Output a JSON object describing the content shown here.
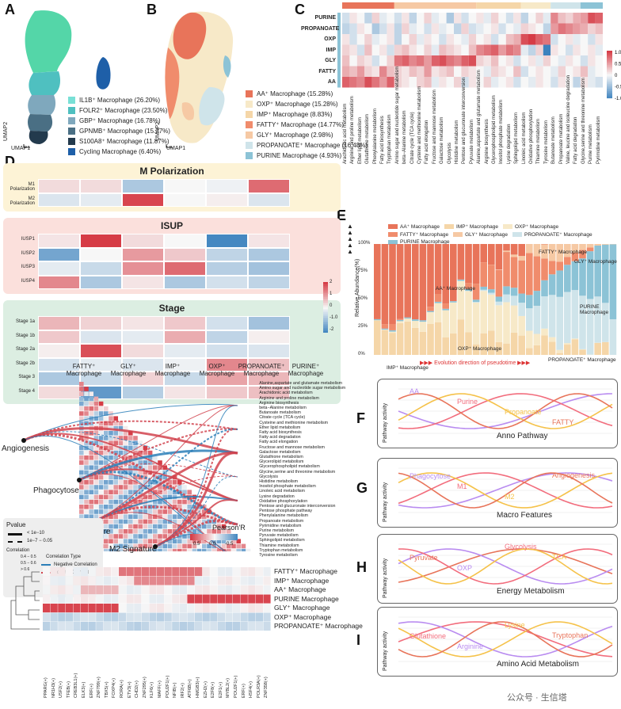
{
  "panels": {
    "A": "A",
    "B": "B",
    "C": "C",
    "D": "D",
    "E": "E",
    "F": "F",
    "G": "G",
    "H": "H",
    "I": "I",
    "J": "J",
    "K": "K"
  },
  "umap_axes": {
    "x": "UMAP1",
    "y": "UMAP2"
  },
  "panelA_legend": [
    {
      "label": "IL1B⁺ Macrophage (26.20%)",
      "color": "#79e0d6"
    },
    {
      "label": "FOLR2⁺ Macrophage (23.50%)",
      "color": "#4fc0c0"
    },
    {
      "label": "GBP⁺ Macrophage (16.78%)",
      "color": "#7fa8bd"
    },
    {
      "label": "GPNMB⁺ Macrophage (15.27%)",
      "color": "#4a6f84"
    },
    {
      "label": "S100A8⁺ Macrophage (11.87%)",
      "color": "#233a4d"
    },
    {
      "label": "Cycling Macrophage (6.40%)",
      "color": "#1e5fa8"
    }
  ],
  "panelB_legend": [
    {
      "label": "AA⁺ Macrophage (15.28%)",
      "color": "#e8745a"
    },
    {
      "label": "OXP⁺ Macrophage (15.28%)",
      "color": "#f7e9c8"
    },
    {
      "label": "IMP⁺ Macrophage (8.83%)",
      "color": "#f5d6a8"
    },
    {
      "label": "FATTY⁺ Macrophage (14.77%)",
      "color": "#f08c6c"
    },
    {
      "label": "GLY⁺ Macrophage (2.98%)",
      "color": "#f6c9a4"
    },
    {
      "label": "PROPANOATE⁺ Macrophage (16.48%)",
      "color": "#cfe4ea"
    },
    {
      "label": "PURINE Macrophage (4.93%)",
      "color": "#8cc3d6"
    }
  ],
  "panelC": {
    "rows": [
      "PURINE",
      "PROPANOATE",
      "OXP",
      "IMP",
      "GLY",
      "FATTY",
      "AA"
    ],
    "cols": [
      "Arachidonic acid metabolism",
      "Arginine and proline metabolism",
      "Ether lipid metabolism",
      "Glutathione metabolism",
      "Phenylalanine metabolism",
      "Fatty acid biosynthesis",
      "Tryptophan metabolism",
      "Amino sugar and nucleotide sugar metabolism",
      "beta−Alanine metabolism",
      "Citrate cycle (TCA cycle)",
      "Cysteine and methionine metabolism",
      "Fatty acid elongation",
      "Fructose and mannose metabolism",
      "Galactose metabolism",
      "Glycolysis",
      "Histidine metabolism",
      "Pentose and glucuronate interconversion",
      "Pyruvate metabolism",
      "Alanine,aspartate and glutamate metabolism",
      "Arginine biosynthesis",
      "Glycerophospholipid metabolism",
      "Inositol phosphate metabolism",
      "Lysine degradation",
      "Sphingolipid metabolism",
      "Linoleic acid metabolism",
      "Oxidative phosphorylation",
      "Thiamine metabolism",
      "Tyrosine metabolism",
      "Butanoate metabolism",
      "Propanoate metabolism",
      "Valine, leucine and isoleucine degradation",
      "Fatty acid degradation",
      "Glycine,serine and threonine metabolism",
      "Purine metabolism",
      "Pyrimidine metabolism"
    ],
    "col_groups": [
      {
        "span": 7,
        "color": "#e8745a"
      },
      {
        "span": 11,
        "color": "#f6c9a4"
      },
      {
        "span": 6,
        "color": "#f5d6a8"
      },
      {
        "span": 4,
        "color": "#f7e9c8"
      },
      {
        "span": 4,
        "color": "#cfe4ea"
      },
      {
        "span": 3,
        "color": "#8cc3d6"
      }
    ],
    "values": [
      [
        -0.2,
        0.1,
        0.0,
        -0.3,
        0.2,
        -0.1,
        0.0,
        -0.2,
        0.1,
        -0.3,
        0.0,
        0.2,
        -0.1,
        0.0,
        -0.4,
        0.1,
        -0.2,
        0.0,
        0.1,
        -0.1,
        0.2,
        0.0,
        -0.2,
        0.1,
        -0.3,
        0.0,
        0.2,
        -0.1,
        0.6,
        0.3,
        0.2,
        0.4,
        0.5,
        0.9,
        0.8
      ],
      [
        -0.3,
        -0.2,
        0.1,
        0.0,
        -0.4,
        -0.2,
        0.1,
        -0.3,
        0.2,
        -0.1,
        0.0,
        -0.2,
        0.1,
        -0.1,
        0.0,
        -0.3,
        0.2,
        -0.2,
        -0.1,
        0.0,
        0.1,
        -0.2,
        0.0,
        -0.1,
        0.2,
        0.1,
        0.0,
        -0.3,
        0.5,
        0.7,
        0.6,
        0.5,
        0.4,
        0.2,
        0.3
      ],
      [
        0.1,
        -0.2,
        0.0,
        0.2,
        -0.1,
        0.0,
        0.1,
        -0.3,
        0.0,
        0.2,
        -0.1,
        0.1,
        0.0,
        -0.2,
        0.1,
        0.0,
        -0.1,
        0.2,
        0.0,
        0.1,
        -0.2,
        0.0,
        0.3,
        0.4,
        0.9,
        1.0,
        0.8,
        0.7,
        -0.2,
        0.0,
        0.1,
        -0.1,
        0.0,
        -0.2,
        0.1
      ],
      [
        0.2,
        0.1,
        -0.2,
        0.3,
        0.0,
        0.1,
        -0.2,
        0.2,
        0.3,
        0.1,
        0.0,
        0.2,
        -0.1,
        0.3,
        0.2,
        0.1,
        0.0,
        0.3,
        0.6,
        0.7,
        0.8,
        0.5,
        0.7,
        0.6,
        -0.1,
        -0.3,
        0.2,
        -1.0,
        0.1,
        0.0,
        -0.2,
        0.1,
        0.0,
        0.1,
        -0.1
      ],
      [
        0.3,
        0.0,
        0.2,
        0.1,
        -0.2,
        0.0,
        0.2,
        0.7,
        0.8,
        0.6,
        0.7,
        0.5,
        0.8,
        0.9,
        0.7,
        0.6,
        0.8,
        0.9,
        0.2,
        0.1,
        0.3,
        0.0,
        0.1,
        -0.2,
        0.0,
        0.1,
        -0.1,
        0.2,
        0.0,
        -0.1,
        0.1,
        0.0,
        -0.2,
        0.1,
        0.0
      ],
      [
        0.4,
        0.3,
        0.5,
        0.2,
        0.1,
        0.6,
        0.3,
        0.2,
        0.1,
        0.3,
        0.2,
        0.5,
        0.1,
        0.2,
        0.3,
        0.0,
        0.2,
        0.1,
        0.0,
        -0.1,
        0.2,
        0.1,
        0.0,
        0.3,
        -0.2,
        0.0,
        0.1,
        0.0,
        -0.1,
        0.2,
        0.0,
        0.1,
        0.3,
        -0.1,
        0.0
      ],
      [
        0.8,
        0.7,
        0.6,
        0.9,
        0.7,
        0.5,
        0.8,
        0.2,
        0.1,
        0.0,
        0.2,
        0.3,
        -0.1,
        0.1,
        0.0,
        0.2,
        -0.2,
        0.1,
        0.0,
        0.2,
        -0.1,
        0.0,
        0.1,
        -0.2,
        0.0,
        -0.1,
        0.1,
        0.0,
        -0.2,
        0.1,
        0.0,
        -0.3,
        0.1,
        -0.1,
        -0.2
      ]
    ],
    "legend": {
      "ticks": [
        "1.0",
        "0.5",
        "0",
        "-0.5",
        "-1.0"
      ]
    }
  },
  "panelD": {
    "cols": [
      "FATTY⁺\nMacrophage",
      "GLY⁺\nMacrophage",
      "IMP⁺\nMacrophage",
      "OXP⁺\nMacrophage",
      "PROPANOATE⁺\nMacrophage",
      "PURINE⁺\nMacrophage"
    ],
    "sections": [
      {
        "title": "M Polarization",
        "bg": "#fdf3d6",
        "rows": [
          {
            "label": "M1\nPolarization",
            "values": [
              0.3,
              0.3,
              -0.8,
              0.0,
              -0.1,
              1.5
            ]
          },
          {
            "label": "M2\nPolarization",
            "values": [
              -0.3,
              -0.2,
              1.9,
              0.0,
              0.1,
              -0.3
            ]
          }
        ]
      },
      {
        "title": "ISUP",
        "bg": "#fbe0dc",
        "rows": [
          {
            "label": "IUSP1",
            "values": [
              0.2,
              2.0,
              0.3,
              0.0,
              -1.9,
              0.2
            ]
          },
          {
            "label": "IUSP2",
            "values": [
              -1.4,
              0.0,
              1.0,
              0.5,
              -0.6,
              -0.8
            ]
          },
          {
            "label": "IUSP3",
            "values": [
              -0.2,
              -0.5,
              1.1,
              1.5,
              -0.7,
              -0.9
            ]
          },
          {
            "label": "IUSP4",
            "values": [
              1.2,
              -0.8,
              0.2,
              -0.8,
              -0.4,
              -0.6
            ]
          }
        ]
      },
      {
        "title": "Stage",
        "bg": "#dceee2",
        "rows": [
          {
            "label": "Stage 1a",
            "values": [
              0.7,
              0.4,
              0.2,
              0.5,
              -0.4,
              -0.9
            ]
          },
          {
            "label": "Stage 1b",
            "values": [
              0.5,
              -0.3,
              -0.2,
              0.8,
              -0.6,
              0.1
            ]
          },
          {
            "label": "Stage 2a",
            "values": [
              0.1,
              1.8,
              0.3,
              -0.2,
              -0.4,
              -0.3
            ]
          },
          {
            "label": "Stage 2b",
            "values": [
              -0.4,
              -0.2,
              -0.3,
              -0.1,
              1.2,
              0.6
            ]
          },
          {
            "label": "Stage 3",
            "values": [
              -0.8,
              -0.5,
              0.4,
              -0.5,
              0.9,
              0.7
            ]
          },
          {
            "label": "Stage 4",
            "values": [
              0.3,
              -1.6,
              -0.7,
              0.2,
              0.5,
              0.6
            ]
          }
        ]
      }
    ],
    "legend": {
      "ticks": [
        "2",
        "1",
        "0",
        "-1.0",
        "-2"
      ]
    }
  },
  "panelE": {
    "legend": [
      {
        "label": "AA⁺ Macrophage",
        "color": "#e8745a"
      },
      {
        "label": "IMP⁺ Macrophage",
        "color": "#f5d6a8"
      },
      {
        "label": "OXP⁺ Macrophage",
        "color": "#f7e9c8"
      },
      {
        "label": "FATTY⁺ Macrophage",
        "color": "#f08c6c"
      },
      {
        "label": "GLY⁺ Macrophage",
        "color": "#f6c9a4"
      },
      {
        "label": "PROPANOATE⁺ Macrophage",
        "color": "#cfe4ea"
      },
      {
        "label": "PURINE Macrophage",
        "color": "#8cc3d6"
      }
    ],
    "ylabel": "Relative Abundance(%)",
    "yticks": [
      "100%",
      "75%",
      "50%",
      "25%",
      "0%"
    ],
    "xcaption": "▶▶▶ Evolution direction of pseudotime ▶▶▶",
    "inplot": {
      "AA": "AA⁺ Macrophage",
      "IMP": "IMP⁺ Macrophage",
      "OXP": "OXP⁺ Macrophage",
      "FATTY": "FATTY⁺ Macrophage",
      "GLY": "GLY⁺ Macrophage",
      "PURINE": "PURINE Macrophage",
      "PROP": "PROPANOATE⁺ Macrophage"
    },
    "arrows": "▲\n▲\n▲\n▲\n▲"
  },
  "panelJ": {
    "cols": [
      "FATTY⁺\nMacrophage",
      "GLY⁺\nMacrophage",
      "IMP⁺\nMacrophage",
      "OXP⁺\nMacrophage",
      "PROPANOATE⁺\nMacrophage",
      "PURINE⁺\nMacrophage"
    ],
    "pathways": [
      "Alanine,aspartate and glutamate metabolism",
      "Amino sugar and nucleotide sugar metabolism",
      "Arachidonic acid metabolism",
      "Arginine and proline metabolism",
      "Arginine biosynthesis",
      "beta−Alanine metabolism",
      "Butanoate metabolism",
      "Citrate cycle (TCA cycle)",
      "Cysteine and methionine metabolism",
      "Ether lipid metabolism",
      "Fatty acid biosynthesis",
      "Fatty acid degradation",
      "Fatty acid elongation",
      "Fructose and mannose metabolism",
      "Galactose metabolism",
      "Glutathione metabolism",
      "Glycerolipid metabolism",
      "Glycerophospholipid metabolism",
      "Glycine,serine and threonine metabolism",
      "Glycolysis",
      "Histidine metabolism",
      "Inositol phosphate metabolism",
      "Linoleic acid metabolism",
      "Lysine degradation",
      "Oxidative phosphorylation",
      "Pentose and glucuronate interconversion",
      "Pentose phosphate pathway",
      "Phenylalanine metabolism",
      "Propanoate metabolism",
      "Pyrimidine metabolism",
      "Purine metabolism",
      "Pyruvate metabolism",
      "Sphingolipid metabolism",
      "Thiamine metabolism",
      "Tryptophan metabolism",
      "Tyrosine metabolism"
    ],
    "nodes": [
      "Angiogenesis",
      "Phagocytose",
      "M1 Signature",
      "M2 Signature"
    ],
    "legend": {
      "pvalue": "Pvalue",
      "p1": "< 1e−10",
      "p2": "1e−7 − 0.05",
      "corr": "Correlation",
      "c1": "0.4 − 0.5",
      "c2": "0.5 − 0.6",
      "c3": "> 0.6",
      "ctype": "Correlation Type",
      "neg": "Negative Correlation",
      "pos": "Positive Correlation",
      "pearson": "Pearson'R",
      "pticks": [
        "0.5",
        "0.0",
        "-0.5"
      ]
    }
  },
  "panelF": {
    "ylabel": "Pathway activity",
    "name": "Anno Pathway",
    "curves": [
      "AA",
      "Purine",
      "Propanoate",
      "FATTY"
    ]
  },
  "panelG": {
    "ylabel": "Pathway activity",
    "name": "Macro Features",
    "curves": [
      "Phagocytose",
      "M1",
      "M2",
      "Angiogenesis"
    ]
  },
  "panelH": {
    "ylabel": "Pathway activity",
    "name": "Energy Metabolism",
    "curves": [
      "Pyruvate",
      "OXP",
      "Glycolysis",
      "TCA"
    ]
  },
  "panelI": {
    "ylabel": "Pathway activity",
    "name": "Amino Acid Metabolism",
    "curves": [
      "Glutathione",
      "Arginine",
      "Lysine",
      "Tryptophan"
    ]
  },
  "panelK": {
    "rows": [
      "FATTY⁺ Macrophage",
      "IMP⁺ Macrophage",
      "AA⁺ Macrophage",
      "PURINE Macrophage",
      "GLY⁺ Macrophage",
      "OXP⁺ Macrophage",
      "PROPANOATE⁺ Macrophage"
    ],
    "cols": [
      "PPARG(+)",
      "NR1H3(+)",
      "USF2(+)",
      "TFEB(+)",
      "CREB3L1(+)",
      "ELK3(+)",
      "ERF(+)",
      "ZNF799(+)",
      "TBX5(+)",
      "FOXP4(+)",
      "RORA(+)",
      "ETV3(+)",
      "CHD2(+)",
      "ZNF295(+)",
      "KLF6(+)",
      "MAFF(+)",
      "POU2F1(+)",
      "NFIB(+)",
      "IRF2(+)",
      "ATF6B(+)",
      "HMGB3(+)",
      "EZH2(+)",
      "E2F8(+)",
      "E2F1(+)",
      "MYBL2(+)",
      "POU2F1(+)",
      "ERF(+)",
      "HSF4(+)",
      "POLR3A(+)",
      "ZNF358(+)"
    ]
  },
  "watermark": "公众号 · 生信塔"
}
